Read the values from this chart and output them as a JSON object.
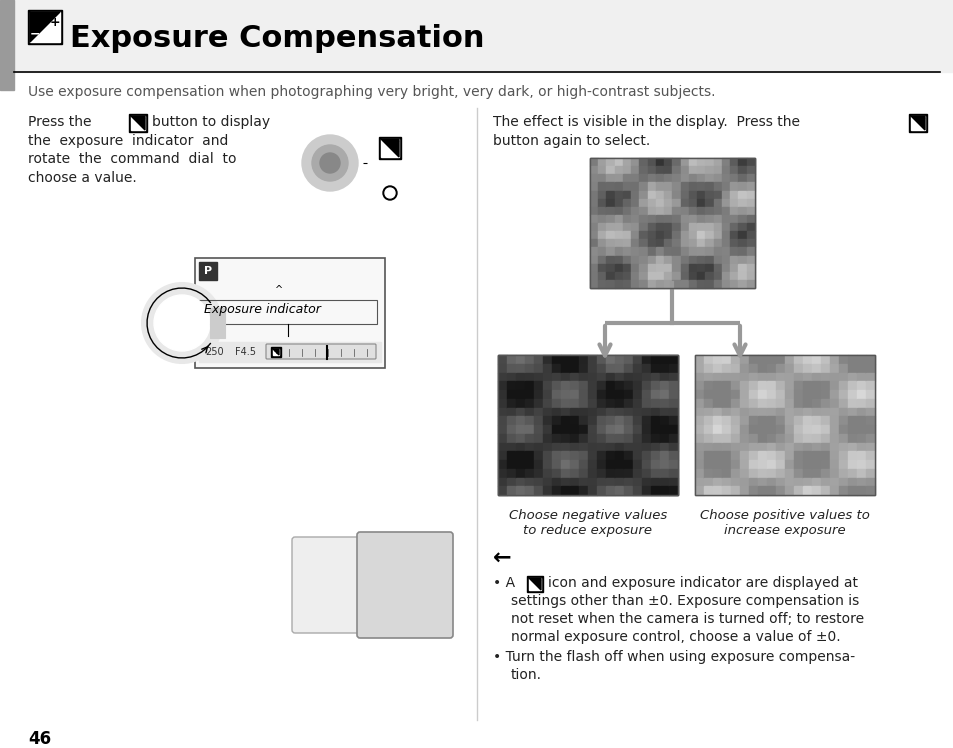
{
  "bg_color": "#ffffff",
  "title": "Exposure Compensation",
  "subtitle": "Use exposure compensation when photographing very bright, very dark, or high-contrast subjects.",
  "left_press_text": "Press the",
  "left_btn_text": "button to display",
  "left_line2": "the  exposure  indicator  and",
  "left_line3": "rotate  the  command  dial  to",
  "left_line4": "choose a value.",
  "right_line1": "The effect is visible in the display.  Press the",
  "right_line2": "button again to select.",
  "caption_left1": "Choose negative values",
  "caption_left2": "to reduce exposure",
  "caption_right1": "Choose positive values to",
  "caption_right2": "increase exposure",
  "bullet1_pre": "• A",
  "bullet1_post": "icon and exposure indicator are displayed at",
  "bullet1_line2": "settings other than ±0. Exposure compensation is",
  "bullet1_line3": "not reset when the camera is turned off; to restore",
  "bullet1_line4": "normal exposure control, choose a value of ±0.",
  "bullet2_line1": "• Turn the flash off when using exposure compensa-",
  "bullet2_line2": "tion.",
  "page_num": "46",
  "gray_bar_color": "#9a9a9a",
  "divider_color": "#cccccc",
  "arrow_color": "#999999",
  "text_color": "#222222",
  "text_color_light": "#555555"
}
